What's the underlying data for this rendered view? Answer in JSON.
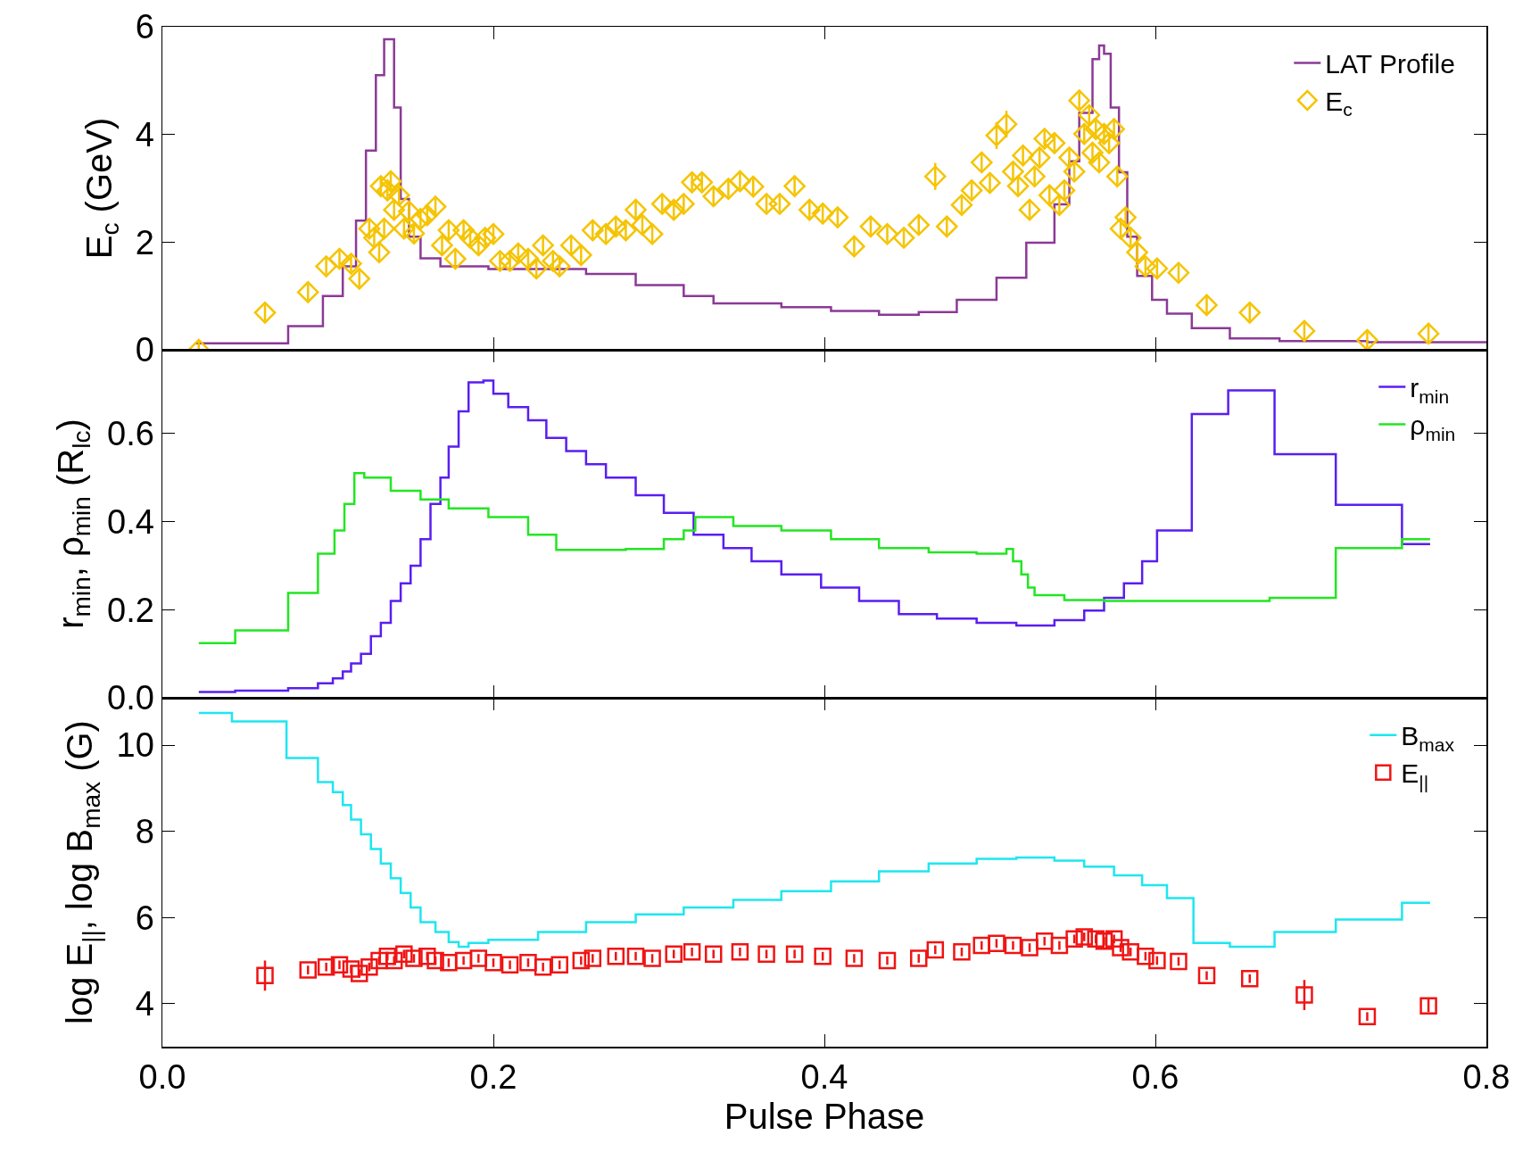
{
  "chart_data": [
    {
      "type": "line",
      "ylabel": "E$_{c}$ (GeV)",
      "xlim": [
        0,
        0.8
      ],
      "xticks": [
        {
          "value": 0.2,
          "label": null
        },
        {
          "value": 0.4,
          "label": null
        },
        {
          "value": 0.6,
          "label": null
        }
      ],
      "ylim": [
        0,
        6
      ],
      "yticks": [
        0,
        2,
        4,
        6
      ],
      "tick_labels": "y",
      "legend": "top right",
      "series": [
        {
          "name": "LAT Profile",
          "type": "step",
          "color": "#8b3a96",
          "x": [
            0.02,
            0.076,
            0.097,
            0.109,
            0.117,
            0.123,
            0.129,
            0.134,
            0.137,
            0.14,
            0.144,
            0.149,
            0.156,
            0.168,
            0.197,
            0.232,
            0.256,
            0.286,
            0.315,
            0.333,
            0.374,
            0.404,
            0.433,
            0.457,
            0.48,
            0.504,
            0.522,
            0.539,
            0.548,
            0.554,
            0.562,
            0.566,
            0.569,
            0.573,
            0.578,
            0.583,
            0.589,
            0.598,
            0.607,
            0.622,
            0.645,
            0.675,
            0.728,
            0.8
          ],
          "values": [
            0.12,
            0.44,
            1.0,
            1.55,
            2.4,
            3.7,
            5.1,
            5.77,
            5.77,
            4.5,
            2.8,
            2.1,
            1.7,
            1.55,
            1.5,
            1.5,
            1.41,
            1.2,
            1.0,
            0.86,
            0.79,
            0.72,
            0.65,
            0.7,
            0.93,
            1.34,
            1.99,
            2.7,
            3.5,
            4.4,
            5.4,
            5.65,
            5.5,
            4.5,
            3.3,
            2.1,
            1.37,
            0.93,
            0.67,
            0.4,
            0.21,
            0.16,
            0.14,
            0.12
          ]
        },
        {
          "name": "E$_{c}$",
          "type": "scatter",
          "marker": "diamond",
          "color": "#f5c400",
          "x": [
            0.022,
            0.062,
            0.088,
            0.099,
            0.107,
            0.114,
            0.119,
            0.125,
            0.128,
            0.131,
            0.132,
            0.134,
            0.136,
            0.138,
            0.14,
            0.143,
            0.146,
            0.149,
            0.152,
            0.156,
            0.16,
            0.165,
            0.169,
            0.173,
            0.177,
            0.182,
            0.186,
            0.191,
            0.195,
            0.2,
            0.204,
            0.21,
            0.215,
            0.221,
            0.226,
            0.23,
            0.236,
            0.24,
            0.247,
            0.253,
            0.26,
            0.268,
            0.274,
            0.28,
            0.286,
            0.29,
            0.296,
            0.302,
            0.309,
            0.315,
            0.32,
            0.326,
            0.333,
            0.342,
            0.349,
            0.357,
            0.365,
            0.373,
            0.382,
            0.391,
            0.399,
            0.408,
            0.418,
            0.428,
            0.438,
            0.448,
            0.457,
            0.467,
            0.474,
            0.483,
            0.489,
            0.495,
            0.5,
            0.504,
            0.51,
            0.514,
            0.517,
            0.52,
            0.524,
            0.527,
            0.53,
            0.533,
            0.536,
            0.539,
            0.542,
            0.545,
            0.548,
            0.551,
            0.554,
            0.557,
            0.56,
            0.562,
            0.564,
            0.566,
            0.569,
            0.572,
            0.575,
            0.577,
            0.579,
            0.582,
            0.585,
            0.589,
            0.594,
            0.601,
            0.614,
            0.631,
            0.657,
            0.69,
            0.728,
            0.765
          ],
          "values": [
            0.0,
            0.69,
            1.07,
            1.55,
            1.69,
            1.6,
            1.32,
            2.25,
            2.08,
            1.81,
            3.04,
            2.25,
            2.96,
            3.13,
            2.6,
            2.87,
            2.25,
            2.57,
            2.16,
            2.43,
            2.5,
            2.66,
            1.94,
            2.22,
            1.69,
            2.22,
            2.08,
            1.94,
            2.08,
            2.15,
            1.65,
            1.65,
            1.79,
            1.69,
            1.51,
            1.94,
            1.65,
            1.55,
            1.94,
            1.76,
            2.22,
            2.15,
            2.29,
            2.22,
            2.6,
            2.32,
            2.15,
            2.71,
            2.6,
            2.71,
            3.11,
            3.11,
            2.85,
            2.99,
            3.13,
            3.03,
            2.71,
            2.71,
            3.04,
            2.6,
            2.53,
            2.46,
            1.92,
            2.29,
            2.15,
            2.08,
            2.32,
            3.22,
            2.29,
            2.69,
            2.96,
            3.48,
            3.1,
            3.98,
            4.19,
            3.31,
            3.04,
            3.61,
            2.6,
            3.22,
            3.57,
            3.92,
            2.87,
            3.84,
            2.69,
            2.96,
            3.57,
            3.31,
            4.63,
            4.01,
            4.36,
            3.66,
            4.1,
            3.48,
            4.01,
            3.84,
            4.1,
            3.22,
            2.25,
            2.46,
            2.08,
            1.81,
            1.55,
            1.51,
            1.43,
            0.83,
            0.69,
            0.35,
            0.18,
            0.3
          ],
          "errors": [
            0.15,
            0.15,
            0.15,
            0.15,
            0.15,
            0.15,
            0.15,
            0.15,
            0.15,
            0.15,
            0.15,
            0.15,
            0.15,
            0.15,
            0.15,
            0.15,
            0.15,
            0.15,
            0.15,
            0.15,
            0.15,
            0.15,
            0.15,
            0.15,
            0.15,
            0.15,
            0.15,
            0.15,
            0.15,
            0.15,
            0.15,
            0.15,
            0.15,
            0.15,
            0.15,
            0.15,
            0.15,
            0.15,
            0.15,
            0.15,
            0.15,
            0.15,
            0.15,
            0.15,
            0.15,
            0.15,
            0.15,
            0.15,
            0.15,
            0.15,
            0.15,
            0.15,
            0.15,
            0.15,
            0.15,
            0.15,
            0.15,
            0.15,
            0.15,
            0.15,
            0.15,
            0.15,
            0.15,
            0.15,
            0.15,
            0.15,
            0.15,
            0.25,
            0.15,
            0.15,
            0.15,
            0.15,
            0.15,
            0.25,
            0.25,
            0.15,
            0.15,
            0.15,
            0.15,
            0.15,
            0.15,
            0.15,
            0.15,
            0.15,
            0.15,
            0.15,
            0.15,
            0.15,
            0.15,
            0.15,
            0.15,
            0.15,
            0.15,
            0.15,
            0.15,
            0.15,
            0.15,
            0.15,
            0.15,
            0.15,
            0.15,
            0.15,
            0.15,
            0.15,
            0.15,
            0.15,
            0.15,
            0.15,
            0.15,
            0.15
          ]
        }
      ]
    },
    {
      "type": "line",
      "ylabel": "r$_{min}$, ρ$_{min}$ (R$_{lc}$)",
      "xlim": [
        0,
        0.8
      ],
      "xticks": [
        {
          "value": 0.2,
          "label": null
        },
        {
          "value": 0.4,
          "label": null
        },
        {
          "value": 0.6,
          "label": null
        }
      ],
      "ylim": [
        0,
        0.79
      ],
      "yticks": [
        {
          "value": 0,
          "label": "0.0"
        },
        0.2,
        0.4,
        0.6
      ],
      "tick_labels": "y",
      "legend": "top right",
      "series": [
        {
          "name": "r$_{min}$",
          "type": "step",
          "color": "#5a1ef0",
          "x": [
            0.022,
            0.044,
            0.076,
            0.094,
            0.103,
            0.109,
            0.114,
            0.12,
            0.126,
            0.132,
            0.138,
            0.144,
            0.15,
            0.156,
            0.162,
            0.168,
            0.173,
            0.179,
            0.185,
            0.194,
            0.2,
            0.209,
            0.221,
            0.232,
            0.244,
            0.256,
            0.268,
            0.286,
            0.303,
            0.321,
            0.339,
            0.356,
            0.374,
            0.398,
            0.421,
            0.445,
            0.468,
            0.492,
            0.516,
            0.539,
            0.557,
            0.569,
            0.581,
            0.592,
            0.601,
            0.622,
            0.644,
            0.672,
            0.709,
            0.749,
            0.766
          ],
          "values": [
            0.013,
            0.016,
            0.022,
            0.033,
            0.044,
            0.06,
            0.078,
            0.1,
            0.14,
            0.17,
            0.22,
            0.26,
            0.3,
            0.36,
            0.44,
            0.5,
            0.57,
            0.65,
            0.716,
            0.72,
            0.69,
            0.66,
            0.63,
            0.59,
            0.56,
            0.53,
            0.5,
            0.46,
            0.42,
            0.37,
            0.34,
            0.31,
            0.28,
            0.25,
            0.22,
            0.19,
            0.18,
            0.17,
            0.164,
            0.176,
            0.198,
            0.227,
            0.26,
            0.31,
            0.38,
            0.644,
            0.698,
            0.553,
            0.438,
            0.349,
            0.349
          ]
        },
        {
          "name": "ρ$_{min}$",
          "type": "step",
          "color": "#22e622",
          "x": [
            0.022,
            0.044,
            0.076,
            0.094,
            0.104,
            0.11,
            0.116,
            0.122,
            0.138,
            0.156,
            0.173,
            0.197,
            0.221,
            0.238,
            0.28,
            0.303,
            0.315,
            0.322,
            0.345,
            0.374,
            0.404,
            0.433,
            0.463,
            0.492,
            0.51,
            0.514,
            0.519,
            0.523,
            0.527,
            0.545,
            0.569,
            0.669,
            0.709,
            0.749,
            0.766
          ],
          "values": [
            0.124,
            0.153,
            0.238,
            0.327,
            0.38,
            0.44,
            0.51,
            0.5,
            0.47,
            0.45,
            0.43,
            0.41,
            0.37,
            0.336,
            0.338,
            0.36,
            0.38,
            0.41,
            0.39,
            0.38,
            0.36,
            0.34,
            0.33,
            0.327,
            0.338,
            0.31,
            0.28,
            0.25,
            0.233,
            0.222,
            0.22,
            0.227,
            0.34,
            0.36,
            0.36
          ]
        }
      ]
    },
    {
      "type": "line",
      "xlabel": "Pulse Phase",
      "ylabel": "log E$_{||}$, log B$_{max}$ (G)",
      "xlim": [
        0,
        0.8
      ],
      "xticks": [
        {
          "value": 0,
          "label": "0.0"
        },
        0.2,
        0.4,
        0.6,
        0.8
      ],
      "ylim": [
        3,
        11.1
      ],
      "yticks": [
        4,
        6,
        8,
        10
      ],
      "legend": "top right",
      "series": [
        {
          "name": "B$_{max}$",
          "type": "step",
          "color": "#1ee6f0",
          "x": [
            0.022,
            0.042,
            0.075,
            0.094,
            0.103,
            0.109,
            0.114,
            0.12,
            0.126,
            0.132,
            0.138,
            0.144,
            0.15,
            0.156,
            0.165,
            0.173,
            0.179,
            0.185,
            0.197,
            0.227,
            0.256,
            0.286,
            0.315,
            0.345,
            0.374,
            0.404,
            0.433,
            0.463,
            0.492,
            0.516,
            0.539,
            0.557,
            0.575,
            0.592,
            0.607,
            0.623,
            0.645,
            0.672,
            0.709,
            0.749,
            0.766
          ],
          "values": [
            10.75,
            10.55,
            9.7,
            9.14,
            8.91,
            8.61,
            8.27,
            7.93,
            7.59,
            7.25,
            6.91,
            6.57,
            6.23,
            5.89,
            5.66,
            5.43,
            5.32,
            5.41,
            5.48,
            5.66,
            5.89,
            6.07,
            6.23,
            6.41,
            6.61,
            6.84,
            7.07,
            7.25,
            7.36,
            7.39,
            7.32,
            7.18,
            6.98,
            6.75,
            6.45,
            5.41,
            5.32,
            5.66,
            5.95,
            6.34,
            6.34
          ]
        },
        {
          "name": "E$_{||}$",
          "type": "scatter",
          "marker": "square",
          "color": "#f01414",
          "x": [
            0.062,
            0.088,
            0.099,
            0.107,
            0.114,
            0.119,
            0.125,
            0.131,
            0.136,
            0.14,
            0.146,
            0.152,
            0.16,
            0.165,
            0.173,
            0.182,
            0.191,
            0.2,
            0.21,
            0.221,
            0.23,
            0.24,
            0.253,
            0.26,
            0.274,
            0.286,
            0.296,
            0.309,
            0.32,
            0.333,
            0.349,
            0.365,
            0.382,
            0.399,
            0.418,
            0.438,
            0.457,
            0.467,
            0.483,
            0.495,
            0.504,
            0.514,
            0.524,
            0.533,
            0.542,
            0.551,
            0.557,
            0.564,
            0.569,
            0.575,
            0.579,
            0.585,
            0.594,
            0.601,
            0.614,
            0.631,
            0.657,
            0.69,
            0.728,
            0.765
          ],
          "values": [
            4.65,
            4.78,
            4.85,
            4.9,
            4.8,
            4.7,
            4.85,
            5.0,
            5.1,
            5.0,
            5.15,
            5.05,
            5.1,
            5.0,
            4.95,
            5.0,
            5.05,
            4.95,
            4.9,
            4.95,
            4.85,
            4.9,
            5.0,
            5.05,
            5.1,
            5.1,
            5.05,
            5.15,
            5.2,
            5.15,
            5.2,
            5.15,
            5.15,
            5.1,
            5.05,
            5.0,
            5.05,
            5.25,
            5.2,
            5.35,
            5.4,
            5.35,
            5.3,
            5.45,
            5.35,
            5.5,
            5.55,
            5.5,
            5.45,
            5.5,
            5.3,
            5.2,
            5.1,
            5.0,
            4.98,
            4.65,
            4.58,
            4.2,
            3.7,
            3.95
          ],
          "errors": [
            0.35,
            0.1,
            0.1,
            0.1,
            0.1,
            0.1,
            0.1,
            0.1,
            0.1,
            0.1,
            0.1,
            0.1,
            0.1,
            0.1,
            0.1,
            0.1,
            0.1,
            0.1,
            0.1,
            0.1,
            0.1,
            0.1,
            0.1,
            0.1,
            0.1,
            0.1,
            0.1,
            0.1,
            0.1,
            0.1,
            0.1,
            0.1,
            0.1,
            0.1,
            0.1,
            0.1,
            0.1,
            0.1,
            0.1,
            0.1,
            0.1,
            0.1,
            0.1,
            0.1,
            0.1,
            0.1,
            0.1,
            0.1,
            0.1,
            0.1,
            0.1,
            0.1,
            0.1,
            0.1,
            0.1,
            0.1,
            0.1,
            0.35,
            0.1,
            0.15
          ]
        }
      ]
    }
  ]
}
